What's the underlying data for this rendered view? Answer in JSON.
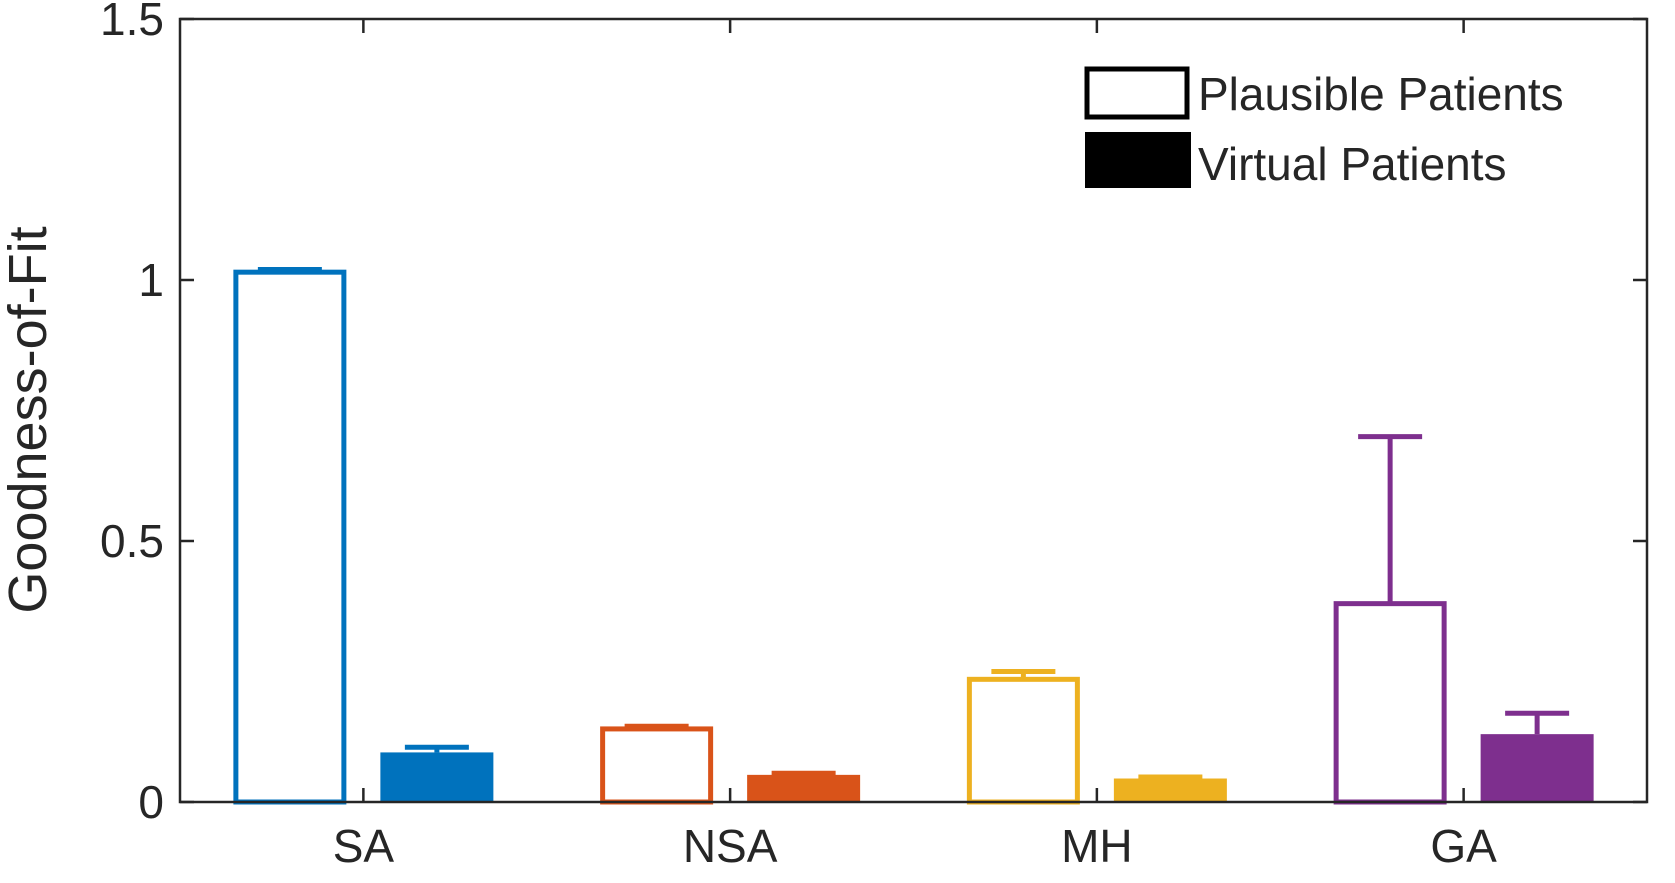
{
  "chart_data": {
    "type": "bar",
    "title": "",
    "xlabel": "",
    "ylabel": "Goodness-of-Fit",
    "ylim": [
      0,
      1.5
    ],
    "yticks": [
      0,
      0.5,
      1,
      1.5
    ],
    "ytick_labels": [
      "0",
      "0.5",
      "1",
      "1.5"
    ],
    "categories": [
      "SA",
      "NSA",
      "MH",
      "GA"
    ],
    "category_colors": [
      "#0072BD",
      "#D95319",
      "#EDB120",
      "#7E2F8E"
    ],
    "series": [
      {
        "name": "Plausible Patients",
        "style": "outline",
        "values": [
          1.015,
          0.14,
          0.235,
          0.38
        ],
        "error_upper": [
          1.02,
          0.145,
          0.25,
          0.7
        ]
      },
      {
        "name": "Virtual Patients",
        "style": "filled",
        "values": [
          0.095,
          0.052,
          0.045,
          0.13
        ],
        "error_upper": [
          0.105,
          0.055,
          0.048,
          0.17
        ]
      }
    ],
    "legend_position": "top-right",
    "grid": false
  }
}
